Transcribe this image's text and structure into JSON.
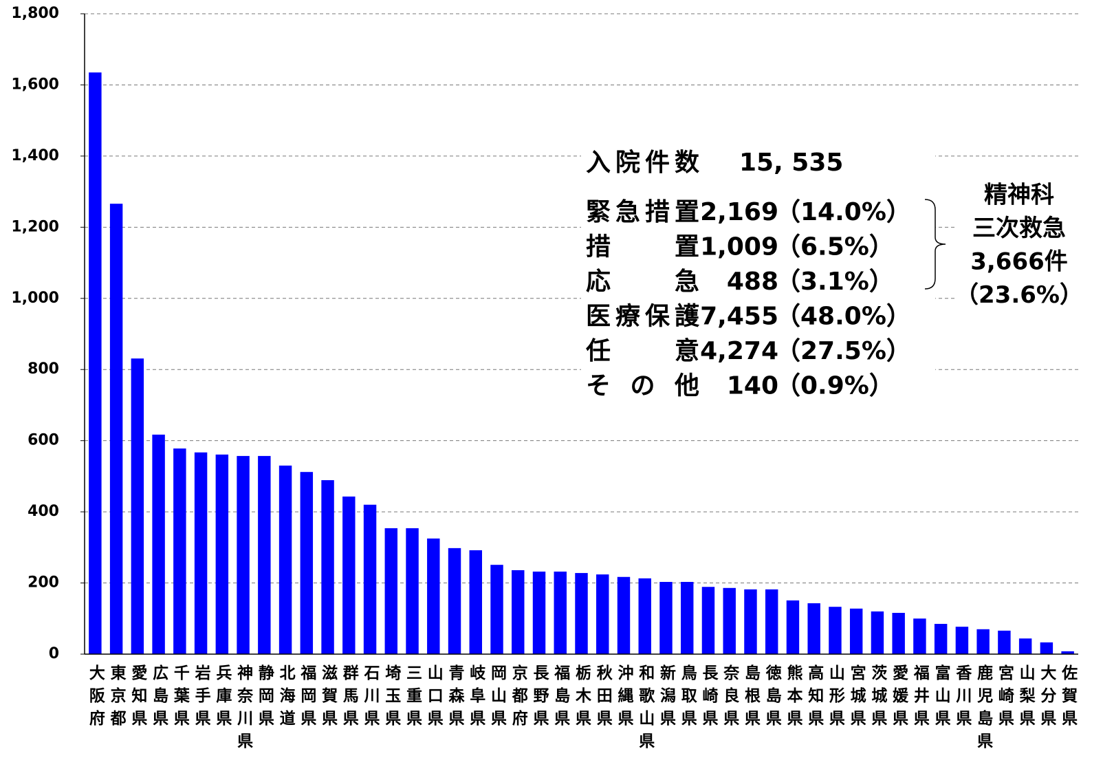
{
  "chart_data": {
    "type": "bar",
    "categories": [
      "大阪府",
      "東京都",
      "愛知県",
      "広島県",
      "千葉県",
      "岩手県",
      "兵庫県",
      "神奈川県",
      "静岡県",
      "北海道",
      "福岡県",
      "滋賀県",
      "群馬県",
      "石川県",
      "埼玉県",
      "三重県",
      "山口県",
      "青森県",
      "岐阜県",
      "岡山県",
      "京都府",
      "長野県",
      "福島県",
      "栃木県",
      "秋田県",
      "沖縄県",
      "和歌山県",
      "新潟県",
      "鳥取県",
      "長崎県",
      "奈良県",
      "島根県",
      "徳島県",
      "熊本県",
      "高知県",
      "山形県",
      "宮城県",
      "茨城県",
      "愛媛県",
      "福井県",
      "富山県",
      "香川県",
      "鹿児島県",
      "宮崎県",
      "山梨県",
      "大分県",
      "佐賀県"
    ],
    "values": [
      1635,
      1266,
      831,
      617,
      578,
      567,
      561,
      557,
      557,
      530,
      512,
      489,
      443,
      420,
      354,
      354,
      325,
      298,
      292,
      251,
      236,
      232,
      232,
      228,
      224,
      217,
      213,
      203,
      203,
      189,
      186,
      182,
      182,
      151,
      143,
      133,
      128,
      120,
      116,
      100,
      85,
      77,
      70,
      66,
      44,
      33,
      8
    ],
    "color": "#0000ff",
    "ylim": [
      0,
      1800
    ],
    "yticks": [
      0,
      200,
      400,
      600,
      800,
      {
        "value": 1000,
        "label": "1,000"
      },
      {
        "value": 1200,
        "label": "1,200"
      },
      {
        "value": 1400,
        "label": "1,400"
      },
      {
        "value": 1600,
        "label": "1,600"
      },
      {
        "value": 1800,
        "label": "1,800"
      }
    ],
    "grid": true,
    "annotation": {
      "total": {
        "label": "入院件数",
        "value": "15, 535"
      },
      "rows": [
        {
          "label": "緊急措置",
          "count": "2,169",
          "share": "（14.0%）"
        },
        {
          "label": "措　　置",
          "count": "1,009",
          "share": "（6.5%）"
        },
        {
          "label": "応　　急",
          "count": "488",
          "share": "（3.1%）"
        },
        {
          "label": "医療保護",
          "count": "7,455",
          "share": "（48.0%）"
        },
        {
          "label": "任　　意",
          "count": "4,274",
          "share": "（27.5%）"
        },
        {
          "label": "そ の 他",
          "count": "140",
          "share": "（0.9%）"
        }
      ],
      "bracket_lines": [
        "精神科",
        "三次救急",
        "3,666件",
        "（23.6%）"
      ]
    }
  }
}
